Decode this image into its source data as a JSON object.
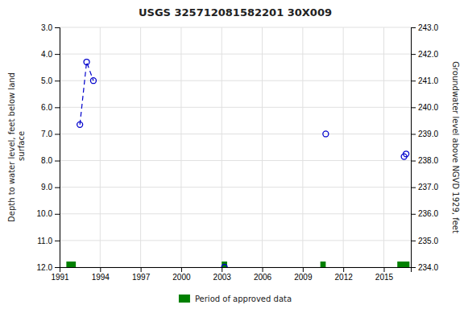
{
  "chart_data": {
    "type": "scatter",
    "title": "USGS 325712081582201 30X009",
    "ylabel": "Depth to water level, feet below land\n surface",
    "y2label": "Groundwater level above NGVD 1929, feet",
    "xlim": [
      1991,
      2017
    ],
    "xticks": [
      1991,
      1994,
      1997,
      2000,
      2003,
      2006,
      2009,
      2012,
      2015
    ],
    "ylim": [
      12.0,
      3.0
    ],
    "yticks": [
      {
        "value": 3.0,
        "label": "3.0"
      },
      {
        "value": 4.0,
        "label": "4.0"
      },
      {
        "value": 5.0,
        "label": "5.0"
      },
      {
        "value": 6.0,
        "label": "6.0"
      },
      {
        "value": 7.0,
        "label": "7.0"
      },
      {
        "value": 8.0,
        "label": "8.0"
      },
      {
        "value": 9.0,
        "label": "9.0"
      },
      {
        "value": 10.0,
        "label": "10.0"
      },
      {
        "value": 11.0,
        "label": "11.0"
      },
      {
        "value": 12.0,
        "label": "12.0"
      }
    ],
    "y2lim": [
      234.0,
      243.0
    ],
    "y2ticks": [
      {
        "value": 243.0,
        "label": "243.0"
      },
      {
        "value": 242.0,
        "label": "242.0"
      },
      {
        "value": 241.0,
        "label": "241.0"
      },
      {
        "value": 240.0,
        "label": "240.0"
      },
      {
        "value": 239.0,
        "label": "239.0"
      },
      {
        "value": 238.0,
        "label": "238.0"
      },
      {
        "value": 237.0,
        "label": "237.0"
      },
      {
        "value": 236.0,
        "label": "236.0"
      },
      {
        "value": 235.0,
        "label": "235.0"
      },
      {
        "value": 234.0,
        "label": "234.0"
      }
    ],
    "grid": true,
    "series": [
      {
        "type": "line",
        "color": "#0000cc",
        "marker": "circle",
        "line_style": "dashed",
        "x": [
          1992.5,
          1993.0,
          1993.5
        ],
        "values": [
          6.65,
          4.3,
          5.0
        ]
      },
      {
        "type": "scatter",
        "color": "#0000cc",
        "marker": "circle",
        "x": [
          2003.2,
          2010.7,
          2016.5,
          2016.65
        ],
        "values": [
          12.0,
          7.0,
          7.85,
          7.75
        ]
      }
    ],
    "approved_periods": {
      "name": "Period of approved data",
      "color": "#008000",
      "x_start": [
        1991.5,
        2003.0,
        2010.3,
        2016.0
      ],
      "x_end": [
        1992.2,
        2003.4,
        2010.7,
        2016.9
      ]
    },
    "legend": "bottom"
  }
}
